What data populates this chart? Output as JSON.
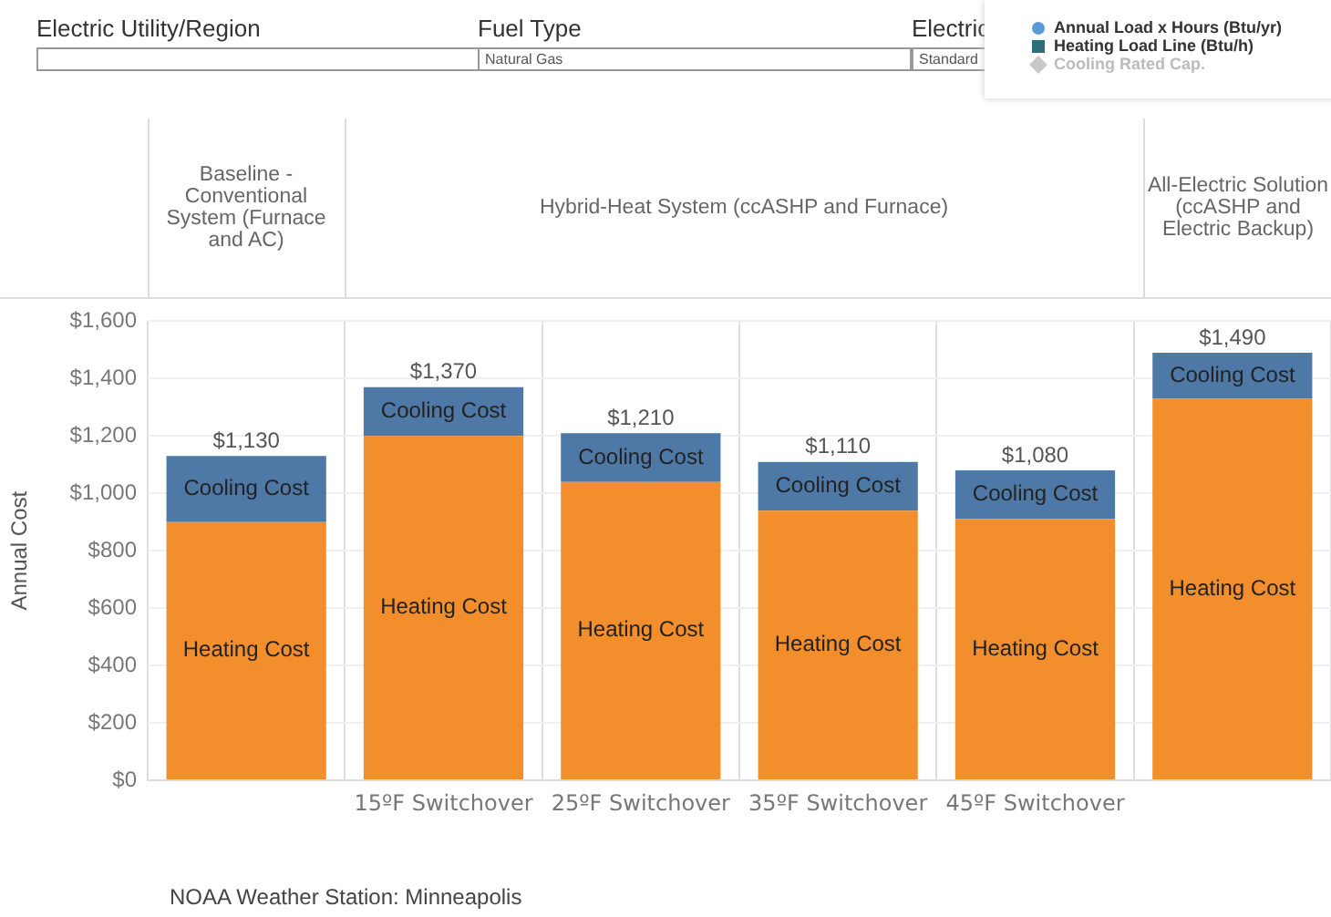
{
  "chart_data": {
    "type": "bar",
    "stacked": true,
    "ylabel": "Annual Cost",
    "categories": [
      null,
      "15ºF Switchover",
      "25ºF Switchover",
      "35ºF Switchover",
      "45ºF Switchover",
      null
    ],
    "series": [
      {
        "name": "Heating Cost",
        "color": "#f28e2b",
        "values": [
          900,
          1200,
          1040,
          940,
          910,
          1330
        ]
      },
      {
        "name": "Cooling Cost",
        "color": "#4e79a7",
        "values": [
          230,
          170,
          170,
          170,
          170,
          160
        ]
      }
    ],
    "totals": [
      "$1,130",
      "$1,370",
      "$1,210",
      "$1,110",
      "$1,080",
      "$1,490"
    ],
    "ylim": [
      0,
      1600
    ],
    "yticks": [
      {
        "value": 0,
        "label": "$0"
      },
      {
        "value": 200,
        "label": "$200"
      },
      {
        "value": 400,
        "label": "$400"
      },
      {
        "value": 600,
        "label": "$600"
      },
      {
        "value": 800,
        "label": "$800"
      },
      {
        "value": 1000,
        "label": "$1,000"
      },
      {
        "value": 1200,
        "label": "$1,200"
      },
      {
        "value": 1400,
        "label": "$1,400"
      },
      {
        "value": 1600,
        "label": "$1,600"
      }
    ],
    "grid": true,
    "legend": false,
    "annotations": [
      "Electric Utility/Region",
      "Fuel Type",
      "Natural Gas",
      "Electric",
      "Standard",
      "Annual Load x Hours (Btu/yr)",
      "Heating Load Line (Btu/h)",
      "Cooling Rated Cap.",
      "Baseline - Conventional System (Furnace and AC)",
      "Hybrid-Heat System (ccASHP and Furnace)",
      "All-Electric Solution (ccASHP and Electric Backup)",
      "NOAA Weather Station: Minneapolis"
    ]
  }
}
